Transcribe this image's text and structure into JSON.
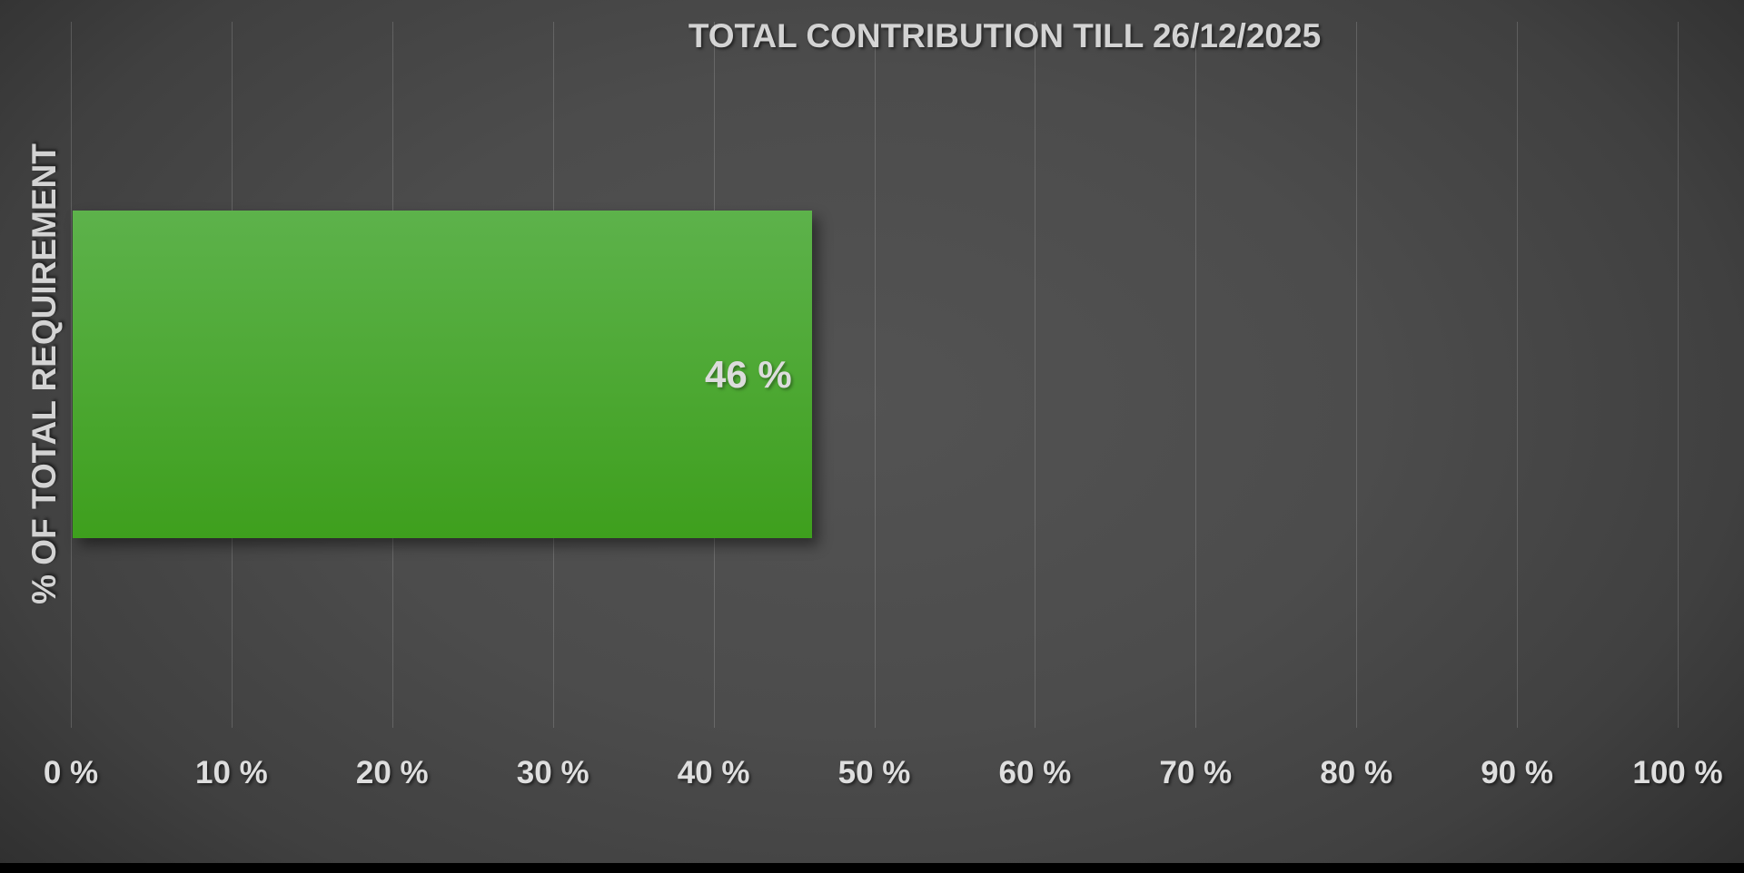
{
  "chart_data": {
    "type": "bar",
    "orientation": "horizontal",
    "title": "TOTAL CONTRIBUTION TILL 26/12/2025",
    "xlabel": "",
    "ylabel": "% OF TOTAL REQUIREMENT",
    "categories": [
      "% OF TOTAL REQUIREMENT"
    ],
    "values": [
      46
    ],
    "bar_label": "46 %",
    "xlim": [
      0,
      100
    ],
    "xtick_interval": 10,
    "xticks": [
      "0 %",
      "10 %",
      "20 %",
      "30 %",
      "40 %",
      "50 %",
      "60 %",
      "70 %",
      "80 %",
      "90 %",
      "100 %"
    ],
    "grid": true,
    "legend": false,
    "colors": {
      "bar_gradient_top": "#5db24b",
      "bar_gradient_bottom": "#3e9f1d",
      "background_center": "#535353",
      "background_corner": "#232323",
      "gridline": "rgba(255,255,255,0.16)",
      "text": "#d6d6d6"
    }
  }
}
